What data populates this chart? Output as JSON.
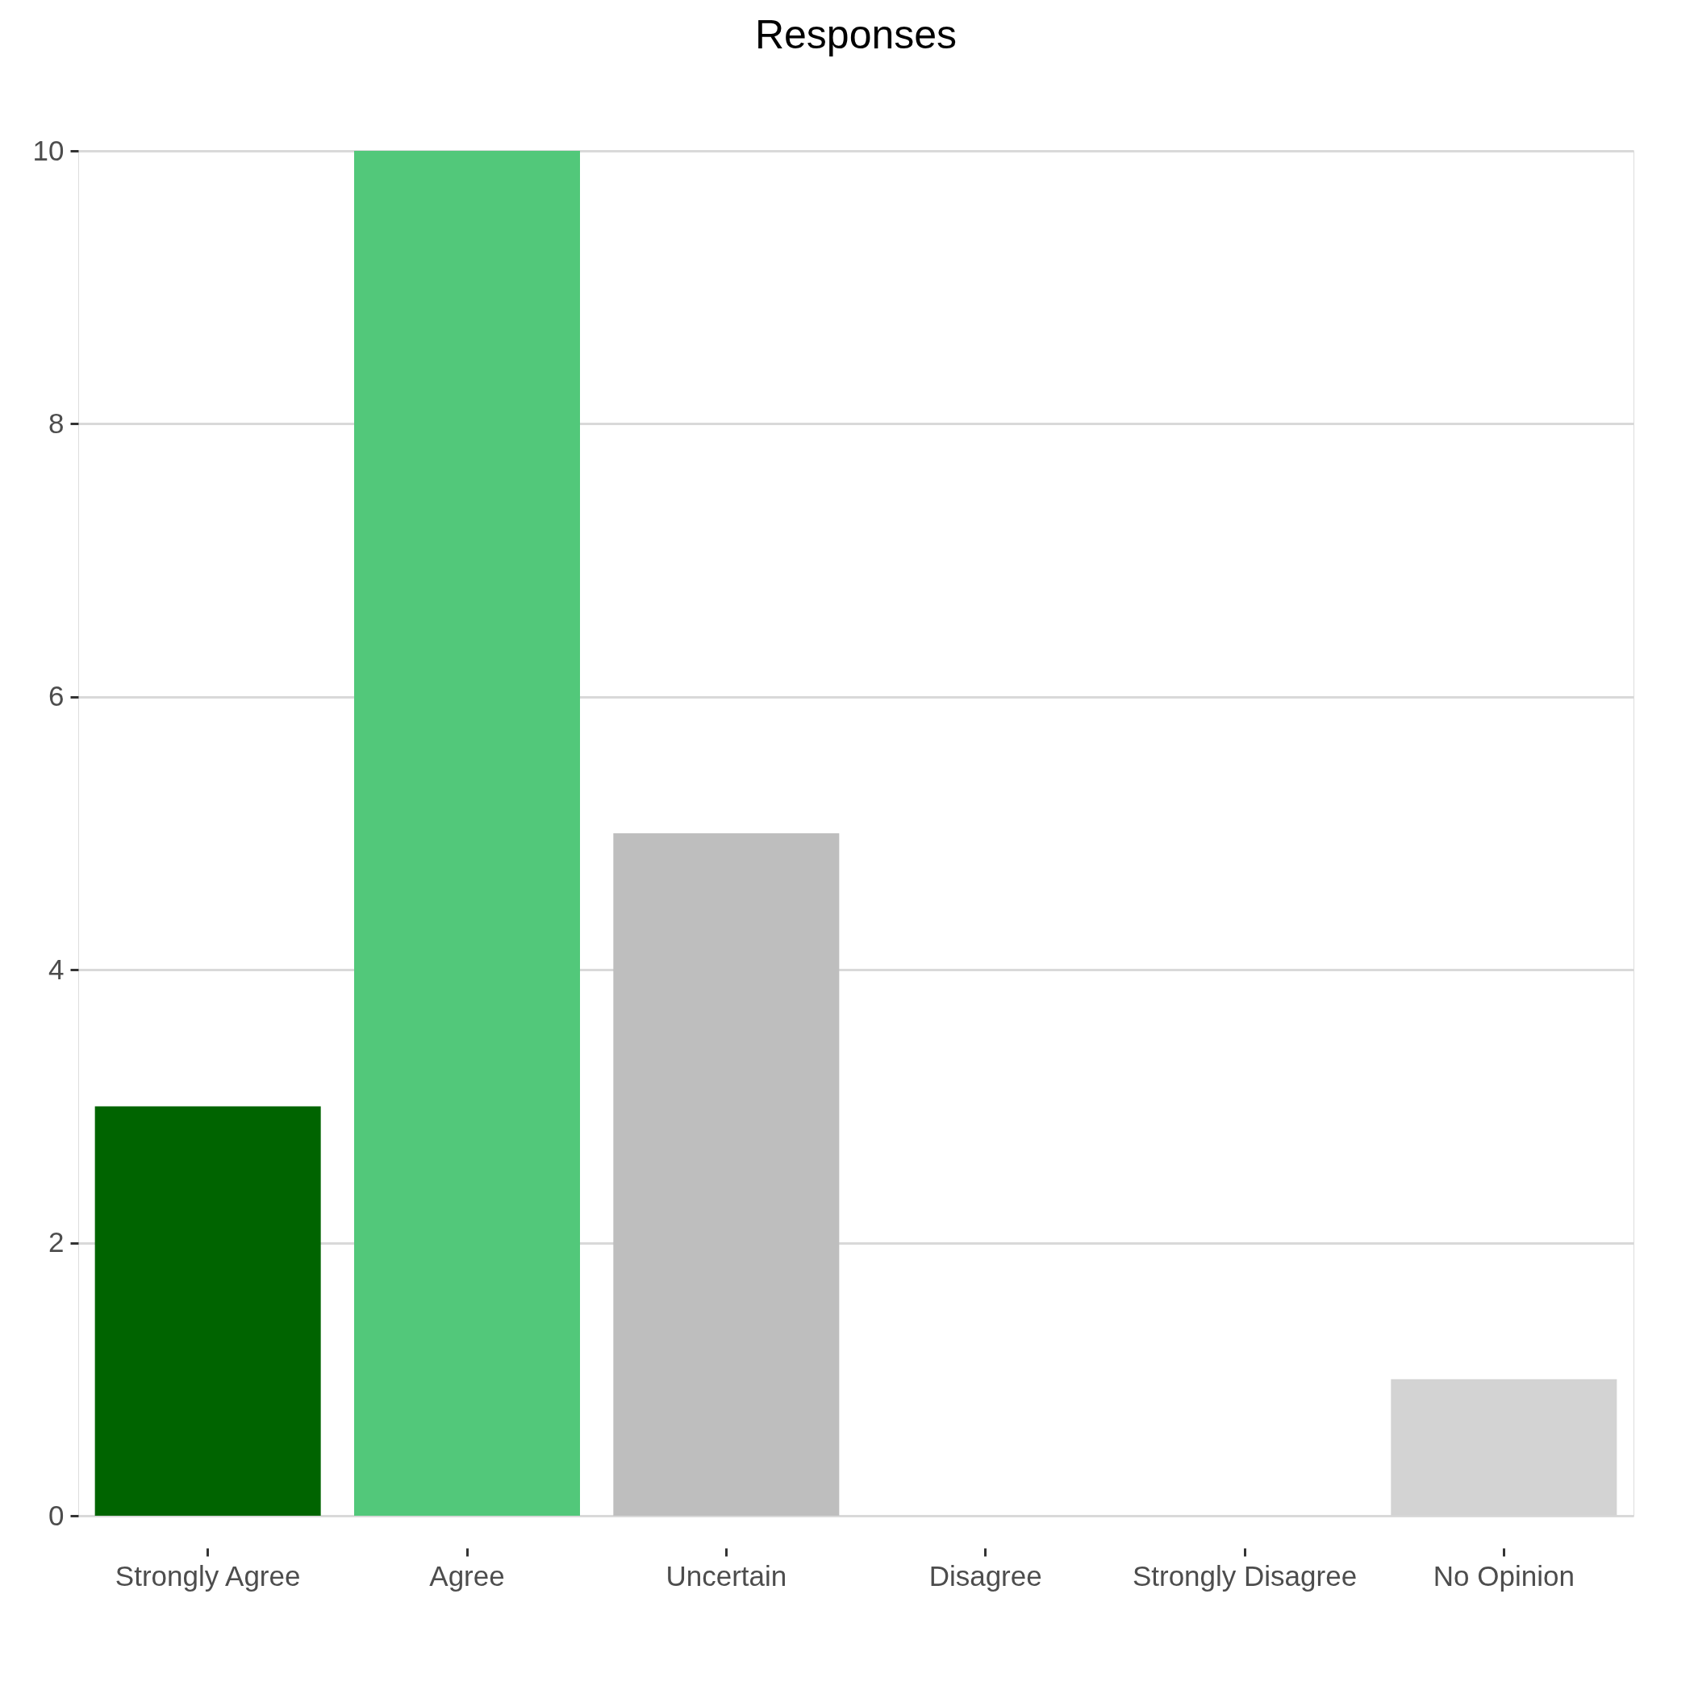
{
  "chart_data": {
    "type": "bar",
    "title": "Responses",
    "categories": [
      "Strongly Agree",
      "Agree",
      "Uncertain",
      "Disagree",
      "Strongly Disagree",
      "No Opinion"
    ],
    "values": [
      3,
      10,
      5,
      0,
      0,
      1
    ],
    "colors": [
      "#006400",
      "#52c87a",
      "#bebebe",
      "#e06666",
      "#8b0000",
      "#d3d3d3"
    ],
    "ylim": [
      0,
      10
    ],
    "yticks": [
      0,
      2,
      4,
      6,
      8,
      10
    ],
    "grid": "y",
    "legend": false
  }
}
